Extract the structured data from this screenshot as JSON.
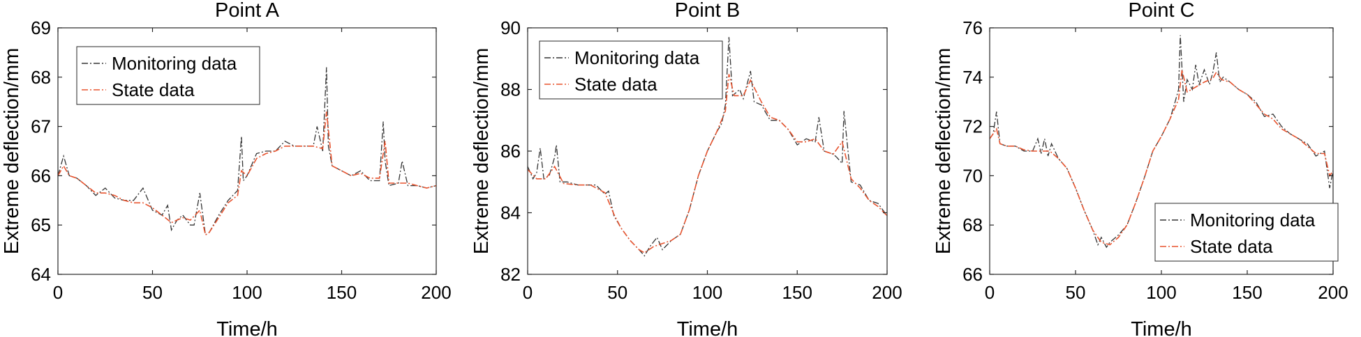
{
  "chart_data": [
    {
      "type": "line",
      "title": "Point A",
      "xlabel": "Time/h",
      "ylabel": "Extreme deflection/mm",
      "xlim": [
        0,
        200
      ],
      "ylim": [
        64,
        69
      ],
      "xticks": [
        0,
        50,
        100,
        150,
        200
      ],
      "yticks": [
        64,
        65,
        66,
        67,
        68,
        69
      ],
      "grid": false,
      "legend_position": "top-left",
      "series": [
        {
          "name": "Monitoring data",
          "color": "#333333",
          "style": "dash-dot",
          "x": [
            0,
            3,
            6,
            10,
            15,
            20,
            25,
            30,
            35,
            40,
            45,
            50,
            55,
            58,
            60,
            63,
            66,
            70,
            72,
            75,
            78,
            80,
            85,
            90,
            95,
            97,
            98,
            100,
            105,
            110,
            115,
            120,
            125,
            130,
            135,
            137,
            140,
            142,
            143,
            145,
            150,
            155,
            160,
            165,
            170,
            172,
            173,
            175,
            180,
            182,
            185,
            190,
            195,
            200
          ],
          "y": [
            66.0,
            66.4,
            66.0,
            65.95,
            65.8,
            65.6,
            65.75,
            65.55,
            65.5,
            65.5,
            65.75,
            65.3,
            65.2,
            65.4,
            64.9,
            65.1,
            65.2,
            65.0,
            65.0,
            65.65,
            64.8,
            64.85,
            65.2,
            65.5,
            65.7,
            66.8,
            65.9,
            66.0,
            66.45,
            66.5,
            66.5,
            66.7,
            66.6,
            66.6,
            66.6,
            67.0,
            66.5,
            68.2,
            66.6,
            66.2,
            66.1,
            66.0,
            66.1,
            65.9,
            65.9,
            67.1,
            66.3,
            65.8,
            65.85,
            66.3,
            65.8,
            65.8,
            65.75,
            65.8
          ]
        },
        {
          "name": "State data",
          "color": "#e8542f",
          "style": "dash-dot",
          "x": [
            0,
            3,
            6,
            10,
            15,
            20,
            25,
            30,
            35,
            40,
            45,
            50,
            55,
            60,
            63,
            66,
            70,
            75,
            78,
            80,
            85,
            90,
            95,
            97,
            100,
            105,
            110,
            115,
            120,
            125,
            130,
            135,
            140,
            142,
            145,
            150,
            155,
            160,
            165,
            170,
            173,
            175,
            180,
            185,
            190,
            195,
            200
          ],
          "y": [
            66.0,
            66.2,
            66.0,
            65.95,
            65.8,
            65.65,
            65.65,
            65.6,
            65.5,
            65.45,
            65.45,
            65.35,
            65.2,
            65.05,
            65.1,
            65.15,
            65.1,
            65.3,
            64.8,
            64.85,
            65.15,
            65.45,
            65.6,
            66.1,
            66.0,
            66.35,
            66.45,
            66.5,
            66.6,
            66.6,
            66.6,
            66.6,
            66.55,
            67.3,
            66.2,
            66.1,
            66.0,
            66.05,
            65.95,
            65.95,
            66.7,
            65.85,
            65.85,
            65.85,
            65.8,
            65.75,
            65.8
          ]
        }
      ]
    },
    {
      "type": "line",
      "title": "Point B",
      "xlabel": "Time/h",
      "ylabel": "Extreme deflection/mm",
      "xlim": [
        0,
        200
      ],
      "ylim": [
        82,
        90
      ],
      "xticks": [
        0,
        50,
        100,
        150,
        200
      ],
      "yticks": [
        82,
        84,
        86,
        88,
        90
      ],
      "grid": false,
      "legend_position": "top-left",
      "series": [
        {
          "name": "Monitoring data",
          "color": "#333333",
          "style": "dash-dot",
          "x": [
            0,
            3,
            5,
            7,
            9,
            12,
            15,
            16,
            18,
            22,
            28,
            32,
            38,
            43,
            45,
            48,
            52,
            57,
            62,
            65,
            68,
            72,
            75,
            80,
            85,
            90,
            95,
            100,
            105,
            108,
            110,
            112,
            114,
            118,
            120,
            124,
            126,
            130,
            135,
            140,
            145,
            150,
            155,
            160,
            162,
            165,
            170,
            172,
            175,
            176,
            180,
            185,
            190,
            195,
            200
          ],
          "y": [
            85.5,
            85.1,
            85.3,
            86.1,
            85.1,
            85.2,
            85.8,
            86.2,
            85.0,
            85.0,
            84.9,
            84.9,
            84.9,
            84.6,
            84.7,
            83.9,
            83.5,
            83.1,
            82.8,
            82.6,
            82.9,
            83.2,
            82.8,
            83.1,
            83.3,
            84.1,
            85.2,
            86.0,
            86.6,
            86.9,
            87.5,
            89.7,
            87.8,
            88.0,
            87.7,
            88.6,
            87.6,
            87.5,
            87.0,
            87.0,
            86.7,
            86.2,
            86.4,
            86.3,
            87.1,
            86.0,
            85.9,
            85.8,
            85.6,
            87.3,
            85.0,
            84.9,
            84.4,
            84.3,
            83.9
          ]
        },
        {
          "name": "State data",
          "color": "#e8542f",
          "style": "dash-dot",
          "x": [
            0,
            5,
            10,
            15,
            20,
            28,
            35,
            43,
            48,
            52,
            57,
            62,
            65,
            70,
            75,
            80,
            85,
            90,
            95,
            100,
            105,
            110,
            112,
            115,
            120,
            124,
            130,
            135,
            140,
            145,
            150,
            155,
            160,
            165,
            170,
            175,
            180,
            185,
            190,
            195,
            200
          ],
          "y": [
            85.4,
            85.1,
            85.1,
            85.5,
            84.95,
            84.9,
            84.9,
            84.65,
            83.95,
            83.5,
            83.1,
            82.8,
            82.7,
            82.9,
            83.0,
            83.1,
            83.3,
            84.1,
            85.2,
            86.0,
            86.6,
            87.3,
            88.5,
            87.8,
            87.8,
            88.3,
            87.6,
            87.1,
            87.0,
            86.7,
            86.3,
            86.3,
            86.4,
            86.0,
            85.9,
            86.3,
            85.1,
            84.8,
            84.4,
            84.2,
            83.9
          ]
        }
      ]
    },
    {
      "type": "line",
      "title": "Point C",
      "xlabel": "Time/h",
      "ylabel": "Extreme deflection/mm",
      "xlim": [
        0,
        200
      ],
      "ylim": [
        66,
        76
      ],
      "xticks": [
        0,
        50,
        100,
        150,
        200
      ],
      "yticks": [
        66,
        68,
        70,
        72,
        74,
        76
      ],
      "grid": false,
      "legend_position": "bottom-right",
      "series": [
        {
          "name": "Monitoring data",
          "color": "#333333",
          "style": "dash-dot",
          "x": [
            0,
            2,
            4,
            6,
            10,
            15,
            20,
            25,
            28,
            30,
            32,
            34,
            36,
            40,
            45,
            50,
            55,
            60,
            63,
            65,
            68,
            70,
            75,
            80,
            85,
            90,
            95,
            100,
            105,
            108,
            110,
            111,
            113,
            115,
            118,
            120,
            122,
            125,
            128,
            130,
            132,
            134,
            136,
            140,
            145,
            150,
            155,
            160,
            165,
            170,
            175,
            180,
            185,
            190,
            195,
            198,
            200
          ],
          "y": [
            71.5,
            71.7,
            72.6,
            71.3,
            71.2,
            71.2,
            71.0,
            71.0,
            71.5,
            70.9,
            71.5,
            70.8,
            71.3,
            70.7,
            70.3,
            69.5,
            68.6,
            67.8,
            67.2,
            67.5,
            67.1,
            67.3,
            67.6,
            68.0,
            68.9,
            69.9,
            71.0,
            71.6,
            72.3,
            73.0,
            73.5,
            75.7,
            73.0,
            73.9,
            73.5,
            74.5,
            73.7,
            74.3,
            73.7,
            74.2,
            75.0,
            73.8,
            74.0,
            73.8,
            73.5,
            73.3,
            73.0,
            72.4,
            72.5,
            72.0,
            71.7,
            71.5,
            71.3,
            70.8,
            71.0,
            69.5,
            70.2
          ]
        },
        {
          "name": "State data",
          "color": "#e8542f",
          "style": "dash-dot",
          "x": [
            0,
            4,
            6,
            10,
            15,
            20,
            25,
            30,
            35,
            40,
            45,
            50,
            55,
            60,
            65,
            70,
            75,
            80,
            85,
            90,
            95,
            100,
            105,
            110,
            112,
            115,
            120,
            125,
            130,
            132,
            135,
            140,
            145,
            150,
            155,
            160,
            165,
            170,
            175,
            180,
            185,
            190,
            195,
            198,
            200
          ],
          "y": [
            71.5,
            71.9,
            71.3,
            71.2,
            71.2,
            71.05,
            71.0,
            71.0,
            71.0,
            70.7,
            70.3,
            69.5,
            68.6,
            67.8,
            67.3,
            67.2,
            67.5,
            68.0,
            68.9,
            69.9,
            71.0,
            71.6,
            72.3,
            73.1,
            74.3,
            73.4,
            73.6,
            73.8,
            73.95,
            74.2,
            73.9,
            73.8,
            73.5,
            73.3,
            72.9,
            72.5,
            72.3,
            71.9,
            71.7,
            71.5,
            71.2,
            70.9,
            70.9,
            70.0,
            70.2
          ]
        }
      ]
    }
  ]
}
